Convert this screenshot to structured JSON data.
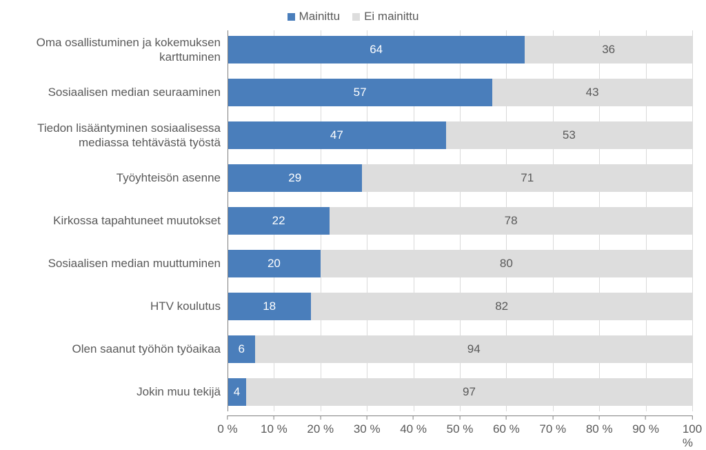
{
  "chart": {
    "type": "stacked-bar-horizontal",
    "legend": [
      {
        "label": "Mainittu",
        "color": "#4a7ebb"
      },
      {
        "label": "Ei mainittu",
        "color": "#dddddd"
      }
    ],
    "series_colors": {
      "mentioned": "#4a7ebb",
      "not_mentioned": "#dddddd"
    },
    "value_label_color_mentioned": "#ffffff",
    "value_label_color_not_mentioned": "#595959",
    "axis_label_color": "#595959",
    "gridline_color": "#d9d9d9",
    "axis_line_color": "#808080",
    "background_color": "#ffffff",
    "font_family": "Arial",
    "label_fontsize": 17,
    "legend_fontsize": 17,
    "value_fontsize": 17,
    "xlim": [
      0,
      100
    ],
    "xtick_step": 10,
    "xtick_format_suffix": " %",
    "rows": [
      {
        "label": "Oma osallistuminen ja kokemuksen karttuminen",
        "mentioned": 64,
        "not_mentioned": 36
      },
      {
        "label": "Sosiaalisen median seuraaminen",
        "mentioned": 57,
        "not_mentioned": 43
      },
      {
        "label": "Tiedon lisääntyminen sosiaalisessa mediassa tehtävästä työstä",
        "mentioned": 47,
        "not_mentioned": 53
      },
      {
        "label": "Työyhteisön asenne",
        "mentioned": 29,
        "not_mentioned": 71
      },
      {
        "label": "Kirkossa tapahtuneet muutokset",
        "mentioned": 22,
        "not_mentioned": 78
      },
      {
        "label": "Sosiaalisen median muuttuminen",
        "mentioned": 20,
        "not_mentioned": 80
      },
      {
        "label": "HTV koulutus",
        "mentioned": 18,
        "not_mentioned": 82
      },
      {
        "label": "Olen saanut työhön työaikaa",
        "mentioned": 6,
        "not_mentioned": 94
      },
      {
        "label": "Jokin muu tekijä",
        "mentioned": 4,
        "not_mentioned": 97
      }
    ],
    "xticks": [
      {
        "pos": 0,
        "label": "0 %"
      },
      {
        "pos": 10,
        "label": "10 %"
      },
      {
        "pos": 20,
        "label": "20 %"
      },
      {
        "pos": 30,
        "label": "30 %"
      },
      {
        "pos": 40,
        "label": "40 %"
      },
      {
        "pos": 50,
        "label": "50 %"
      },
      {
        "pos": 60,
        "label": "60 %"
      },
      {
        "pos": 70,
        "label": "70 %"
      },
      {
        "pos": 80,
        "label": "80 %"
      },
      {
        "pos": 90,
        "label": "90 %"
      },
      {
        "pos": 100,
        "label": "100 %"
      }
    ]
  }
}
